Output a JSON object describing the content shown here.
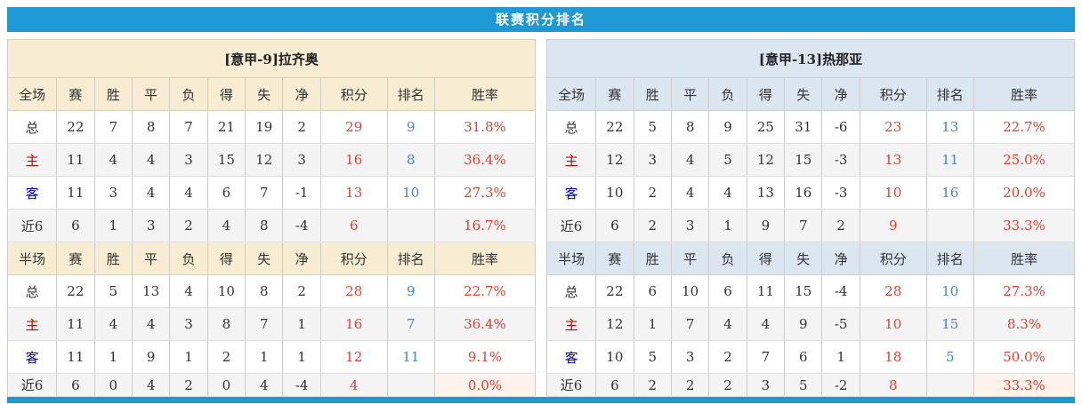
{
  "title": "联赛积分排名",
  "columns_full": [
    "全场",
    "赛",
    "胜",
    "平",
    "负",
    "得",
    "失",
    "净",
    "积分",
    "排名",
    "胜率"
  ],
  "columns_half": [
    "半场",
    "赛",
    "胜",
    "平",
    "负",
    "得",
    "失",
    "净",
    "积分",
    "排名",
    "胜率"
  ],
  "teams": [
    {
      "name": "[意甲-9]拉齐奥",
      "full": [
        [
          "总",
          "22",
          "7",
          "8",
          "7",
          "21",
          "19",
          "2",
          "29",
          "9",
          "31.8%"
        ],
        [
          "主",
          "11",
          "4",
          "4",
          "3",
          "15",
          "12",
          "3",
          "16",
          "8",
          "36.4%"
        ],
        [
          "客",
          "11",
          "3",
          "4",
          "4",
          "6",
          "7",
          "-1",
          "13",
          "10",
          "27.3%"
        ],
        [
          "近6",
          "6",
          "1",
          "3",
          "2",
          "4",
          "8",
          "-4",
          "6",
          "",
          "16.7%"
        ]
      ],
      "half": [
        [
          "总",
          "22",
          "5",
          "13",
          "4",
          "10",
          "8",
          "2",
          "28",
          "9",
          "22.7%"
        ],
        [
          "主",
          "11",
          "4",
          "4",
          "3",
          "8",
          "7",
          "1",
          "16",
          "7",
          "36.4%"
        ],
        [
          "客",
          "11",
          "1",
          "9",
          "1",
          "2",
          "1",
          "1",
          "12",
          "11",
          "9.1%"
        ],
        [
          "近6",
          "6",
          "0",
          "4",
          "2",
          "0",
          "4",
          "-4",
          "4",
          "",
          "0.0%"
        ]
      ]
    },
    {
      "name": "[意甲-13]热那亚",
      "full": [
        [
          "总",
          "22",
          "5",
          "8",
          "9",
          "25",
          "31",
          "-6",
          "23",
          "13",
          "22.7%"
        ],
        [
          "主",
          "12",
          "3",
          "4",
          "5",
          "12",
          "15",
          "-3",
          "13",
          "11",
          "25.0%"
        ],
        [
          "客",
          "10",
          "2",
          "4",
          "4",
          "13",
          "16",
          "-3",
          "10",
          "16",
          "20.0%"
        ],
        [
          "近6",
          "6",
          "2",
          "3",
          "1",
          "9",
          "7",
          "2",
          "9",
          "",
          "33.3%"
        ]
      ],
      "half": [
        [
          "总",
          "22",
          "6",
          "10",
          "6",
          "11",
          "15",
          "-4",
          "28",
          "10",
          "27.3%"
        ],
        [
          "主",
          "12",
          "1",
          "7",
          "4",
          "4",
          "9",
          "-5",
          "10",
          "15",
          "8.3%"
        ],
        [
          "客",
          "10",
          "5",
          "3",
          "2",
          "7",
          "6",
          "1",
          "18",
          "5",
          "50.0%"
        ],
        [
          "近6",
          "6",
          "2",
          "2",
          "2",
          "3",
          "5",
          "-2",
          "8",
          "",
          "33.3%"
        ]
      ]
    }
  ],
  "colors": {
    "accent_blue": "#1d9ad6",
    "left_header_bg": "#f8ecd2",
    "right_header_bg": "#dce6f1",
    "row_stripe": "#f4f4f4",
    "points_red": "#e14234",
    "rank_blue": "#4286c6",
    "home_label_red": "#cc0000",
    "away_label_blue": "#0000bb",
    "highlight_cream": "#fdf3ec"
  }
}
